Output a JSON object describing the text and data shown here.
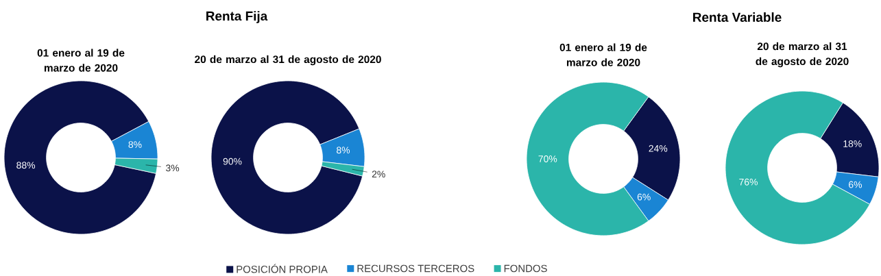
{
  "chart_data": [
    {
      "type": "donut",
      "subtitle": "01 enero al 19 de marzo de 2020",
      "categories": [
        "POSICIÓN PROPIA",
        "RECURSOS TERCEROS",
        "FONDOS"
      ],
      "values": [
        88,
        8,
        3
      ],
      "value_labels": [
        "88%",
        "8%",
        "3%"
      ],
      "colors": [
        "#0b1249",
        "#1a85d4",
        "#2bb5aa"
      ],
      "legend": "bottom"
    },
    {
      "type": "donut",
      "title": "Renta Fija",
      "subtitle": "20 de marzo al 31 de agosto de 2020",
      "categories": [
        null,
        null,
        null
      ],
      "values": [
        90,
        8,
        2
      ],
      "value_labels": [
        "90%",
        "8%",
        "2%"
      ],
      "colors": [
        "#0b1249",
        "#1a85d4",
        "#2bb5aa"
      ]
    },
    {
      "type": "donut",
      "subtitle": "01 enero al 19 de marzo de 2020",
      "categories": [
        null,
        null,
        null
      ],
      "values": [
        24,
        6,
        70
      ],
      "value_labels": [
        "24%",
        "6%",
        "70%"
      ],
      "colors": [
        "#0b1249",
        "#1a85d4",
        "#2bb5aa"
      ]
    },
    {
      "type": "donut",
      "title": "Renta Variable",
      "subtitle": "20 de marzo al 31 de agosto de 2020",
      "categories": [
        null,
        null,
        null
      ],
      "values": [
        18,
        6,
        76
      ],
      "value_labels": [
        "18%",
        "6%",
        "76%"
      ],
      "colors": [
        "#0b1249",
        "#1a85d4",
        "#2bb5aa"
      ]
    }
  ]
}
